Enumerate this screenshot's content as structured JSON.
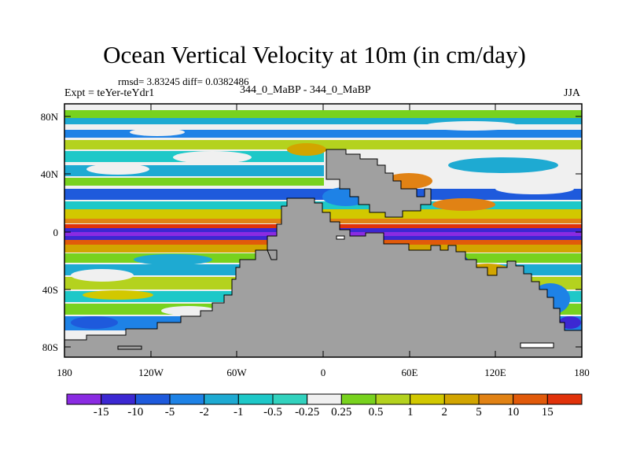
{
  "title": "Ocean Vertical Velocity at 10m (in cm/day)",
  "stats": "rmsd= 3.83245 diff= 0.0382486",
  "left_label": "Expt = teYer-teYdr1",
  "center_label": "344_0_MaBP - 344_0_MaBP",
  "right_label": "JJA",
  "y_ticks": [
    "80N",
    "40N",
    "0",
    "40S",
    "80S"
  ],
  "x_ticks": [
    "180",
    "120W",
    "60W",
    "0",
    "60E",
    "120E",
    "180"
  ],
  "colorbar": {
    "colors": [
      "#8a2be2",
      "#3c28d2",
      "#1e5adc",
      "#1e82e6",
      "#1eaad2",
      "#1ec8c8",
      "#32d2be",
      "#f0f0f0",
      "#78d21e",
      "#b4d21e",
      "#d2c800",
      "#d2a500",
      "#e18214",
      "#e15a0a",
      "#e1320a"
    ],
    "labels": [
      "-15",
      "-10",
      "-5",
      "-2",
      "-1",
      "-0.5",
      "-0.25",
      "0.25",
      "0.5",
      "1",
      "2",
      "5",
      "10",
      "15"
    ]
  },
  "land_color": "#a0a0a0"
}
